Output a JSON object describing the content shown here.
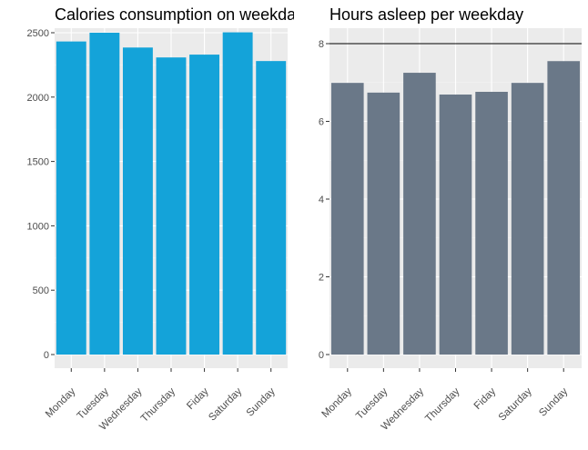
{
  "chart_data": [
    {
      "type": "bar",
      "title": "Calories consumption on weekday",
      "xlabel": "",
      "ylabel": "",
      "categories": [
        "Monday",
        "Tuesday",
        "Wednesday",
        "Thursday",
        "Fiday",
        "Saturday",
        "Sunday"
      ],
      "values": [
        2432,
        2500,
        2385,
        2308,
        2330,
        2503,
        2280
      ],
      "ylim": [
        0,
        2600
      ],
      "yticks": [
        "0",
        "500",
        "1000",
        "1500",
        "2000",
        "2500"
      ],
      "grid": true,
      "bar_color": "#14a3d9",
      "panel_bg": "#ebebeb"
    },
    {
      "type": "bar",
      "title": "Hours asleep per weekday",
      "xlabel": "",
      "ylabel": "",
      "categories": [
        "Monday",
        "Tuesday",
        "Wednesday",
        "Thursday",
        "Fiday",
        "Saturday",
        "Sunday"
      ],
      "values": [
        6.99,
        6.74,
        7.25,
        6.69,
        6.76,
        6.99,
        7.55
      ],
      "ylim": [
        0,
        8.4
      ],
      "yticks": [
        "0",
        "2",
        "4",
        "6",
        "8"
      ],
      "reference_line": 8,
      "grid": true,
      "bar_color": "#6a7888",
      "panel_bg": "#ebebeb"
    }
  ]
}
